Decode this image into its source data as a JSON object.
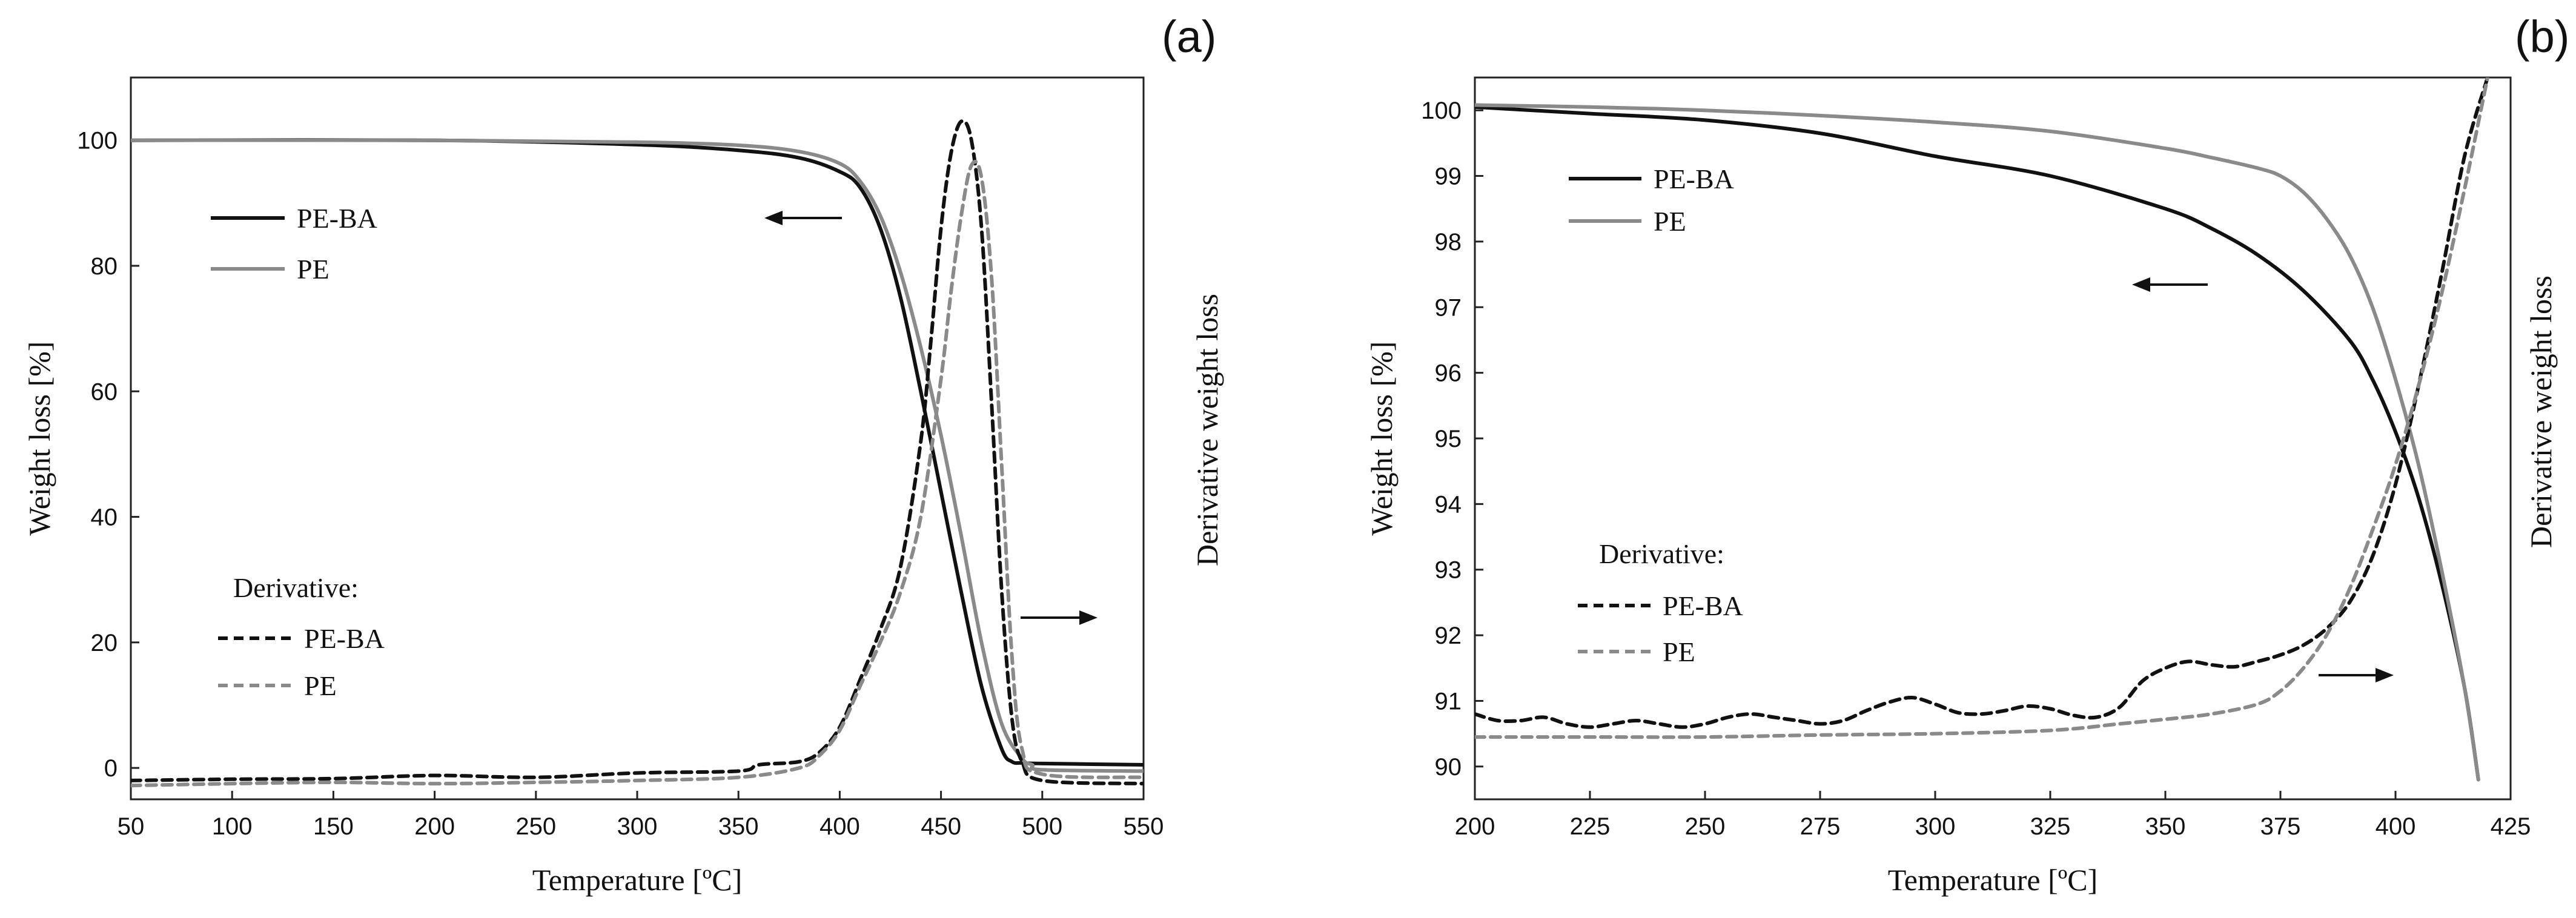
{
  "figure": {
    "colors": {
      "pe_ba": "#111111",
      "pe": "#8a8a8a"
    }
  },
  "chart_data": [
    {
      "type": "line",
      "panel_label": "(a)",
      "title": "",
      "xlabel": "Temperature [ºC]",
      "ylabel": "Weight loss [%]",
      "y2label": "Derivative weight loss",
      "xlim": [
        50,
        550
      ],
      "ylim": [
        -5,
        110
      ],
      "xticks": [
        50,
        100,
        150,
        200,
        250,
        300,
        350,
        400,
        450,
        500,
        550
      ],
      "yticks": [
        0,
        20,
        40,
        60,
        80,
        100
      ],
      "legend_weight": [
        "PE-BA",
        "PE"
      ],
      "legend_derivative_title": "Derivative:",
      "legend_derivative": [
        "PE-BA",
        "PE"
      ],
      "series": [
        {
          "name": "PE-BA",
          "kind": "weight loss",
          "style": "solid",
          "color": "#111111",
          "x": [
            50,
            200,
            300,
            350,
            380,
            400,
            410,
            420,
            430,
            440,
            450,
            460,
            470,
            480,
            485,
            490,
            500,
            550
          ],
          "y": [
            100,
            100,
            99.3,
            98.4,
            97.2,
            95.0,
            92.5,
            86.0,
            75.0,
            60.0,
            44.0,
            28.0,
            13.0,
            3.0,
            1.0,
            0.8,
            0.7,
            0.5
          ]
        },
        {
          "name": "PE",
          "kind": "weight loss",
          "style": "solid",
          "color": "#8a8a8a",
          "x": [
            50,
            200,
            300,
            350,
            380,
            400,
            410,
            420,
            430,
            440,
            450,
            460,
            470,
            480,
            490,
            495,
            500,
            550
          ],
          "y": [
            100,
            100,
            99.7,
            99.2,
            98.2,
            96.3,
            93.5,
            88.0,
            79.0,
            67.0,
            53.0,
            37.0,
            20.0,
            7.0,
            1.5,
            0.5,
            -0.3,
            -0.5
          ]
        },
        {
          "name": "PE-BA",
          "kind": "derivative",
          "style": "dashed",
          "color": "#111111",
          "x": [
            50,
            100,
            150,
            200,
            250,
            300,
            350,
            360,
            380,
            390,
            400,
            410,
            420,
            430,
            440,
            445,
            450,
            455,
            460,
            465,
            470,
            475,
            480,
            485,
            490,
            500,
            550
          ],
          "y": [
            -2.0,
            -1.8,
            -1.7,
            -1.2,
            -1.5,
            -0.8,
            -0.5,
            0.5,
            1.0,
            2.5,
            6.5,
            14.0,
            22.0,
            32.0,
            52.0,
            68.0,
            86.0,
            98.0,
            103.0,
            100.0,
            86.0,
            58.0,
            28.0,
            8.0,
            1.0,
            -2.0,
            -2.5
          ]
        },
        {
          "name": "PE",
          "kind": "derivative",
          "style": "dashed",
          "color": "#8a8a8a",
          "x": [
            50,
            100,
            150,
            200,
            250,
            300,
            350,
            380,
            390,
            400,
            410,
            420,
            430,
            440,
            450,
            455,
            460,
            465,
            470,
            475,
            480,
            485,
            490,
            500,
            550
          ],
          "y": [
            -2.8,
            -2.5,
            -2.3,
            -2.5,
            -2.3,
            -2.0,
            -1.5,
            0.0,
            2.0,
            6.0,
            13.0,
            20.0,
            28.0,
            40.0,
            62.0,
            76.0,
            88.0,
            96.0,
            94.0,
            78.0,
            48.0,
            18.0,
            3.0,
            -1.0,
            -1.5
          ]
        }
      ]
    },
    {
      "type": "line",
      "panel_label": "(b)",
      "title": "",
      "xlabel": "Temperature [ºC]",
      "ylabel": "Weight loss [%]",
      "y2label": "Derivative weight loss",
      "xlim": [
        200,
        425
      ],
      "ylim": [
        89.5,
        100.5
      ],
      "xticks": [
        200,
        225,
        250,
        275,
        300,
        325,
        350,
        375,
        400,
        425
      ],
      "yticks": [
        90,
        91,
        92,
        93,
        94,
        95,
        96,
        97,
        98,
        99,
        100
      ],
      "legend_weight": [
        "PE-BA",
        "PE"
      ],
      "legend_derivative_title": "Derivative:",
      "legend_derivative": [
        "PE-BA",
        "PE"
      ],
      "series": [
        {
          "name": "PE-BA",
          "kind": "weight loss",
          "style": "solid",
          "color": "#111111",
          "x": [
            200,
            225,
            250,
            275,
            300,
            325,
            350,
            360,
            370,
            380,
            390,
            395,
            400,
            405,
            410,
            415,
            418
          ],
          "y": [
            100.05,
            99.95,
            99.85,
            99.65,
            99.3,
            99.0,
            98.5,
            98.2,
            97.8,
            97.25,
            96.5,
            95.9,
            95.1,
            94.1,
            92.8,
            91.2,
            89.8
          ]
        },
        {
          "name": "PE",
          "kind": "weight loss",
          "style": "solid",
          "color": "#8a8a8a",
          "x": [
            200,
            225,
            250,
            275,
            300,
            325,
            350,
            360,
            370,
            375,
            380,
            385,
            390,
            395,
            400,
            405,
            410,
            415,
            418
          ],
          "y": [
            100.08,
            100.05,
            100.0,
            99.92,
            99.82,
            99.68,
            99.42,
            99.28,
            99.12,
            99.0,
            98.75,
            98.35,
            97.8,
            97.0,
            95.9,
            94.6,
            93.0,
            91.2,
            89.8
          ]
        },
        {
          "name": "PE-BA",
          "kind": "derivative",
          "style": "dashed",
          "color": "#111111",
          "x": [
            200,
            205,
            210,
            215,
            220,
            225,
            230,
            235,
            240,
            245,
            250,
            255,
            260,
            265,
            270,
            275,
            280,
            285,
            290,
            295,
            300,
            305,
            310,
            315,
            320,
            325,
            330,
            335,
            340,
            345,
            350,
            355,
            360,
            365,
            370,
            375,
            380,
            385,
            390,
            395,
            400,
            405,
            410,
            415,
            420
          ],
          "y": [
            90.8,
            90.7,
            90.7,
            90.75,
            90.65,
            90.6,
            90.65,
            90.7,
            90.65,
            90.6,
            90.65,
            90.75,
            90.8,
            90.75,
            90.7,
            90.65,
            90.7,
            90.85,
            90.98,
            91.05,
            90.95,
            90.82,
            90.8,
            90.85,
            90.92,
            90.88,
            90.78,
            90.75,
            90.9,
            91.3,
            91.5,
            91.6,
            91.55,
            91.52,
            91.6,
            91.7,
            91.85,
            92.1,
            92.5,
            93.2,
            94.3,
            95.8,
            97.5,
            99.3,
            100.5
          ]
        },
        {
          "name": "PE",
          "kind": "derivative",
          "style": "dashed",
          "color": "#8a8a8a",
          "x": [
            200,
            225,
            250,
            275,
            300,
            325,
            340,
            350,
            360,
            370,
            375,
            380,
            385,
            390,
            395,
            400,
            405,
            410,
            415,
            420
          ],
          "y": [
            90.45,
            90.45,
            90.45,
            90.48,
            90.5,
            90.55,
            90.65,
            90.72,
            90.8,
            90.95,
            91.15,
            91.5,
            92.0,
            92.7,
            93.6,
            94.6,
            95.8,
            97.2,
            98.8,
            100.5
          ]
        }
      ]
    }
  ]
}
